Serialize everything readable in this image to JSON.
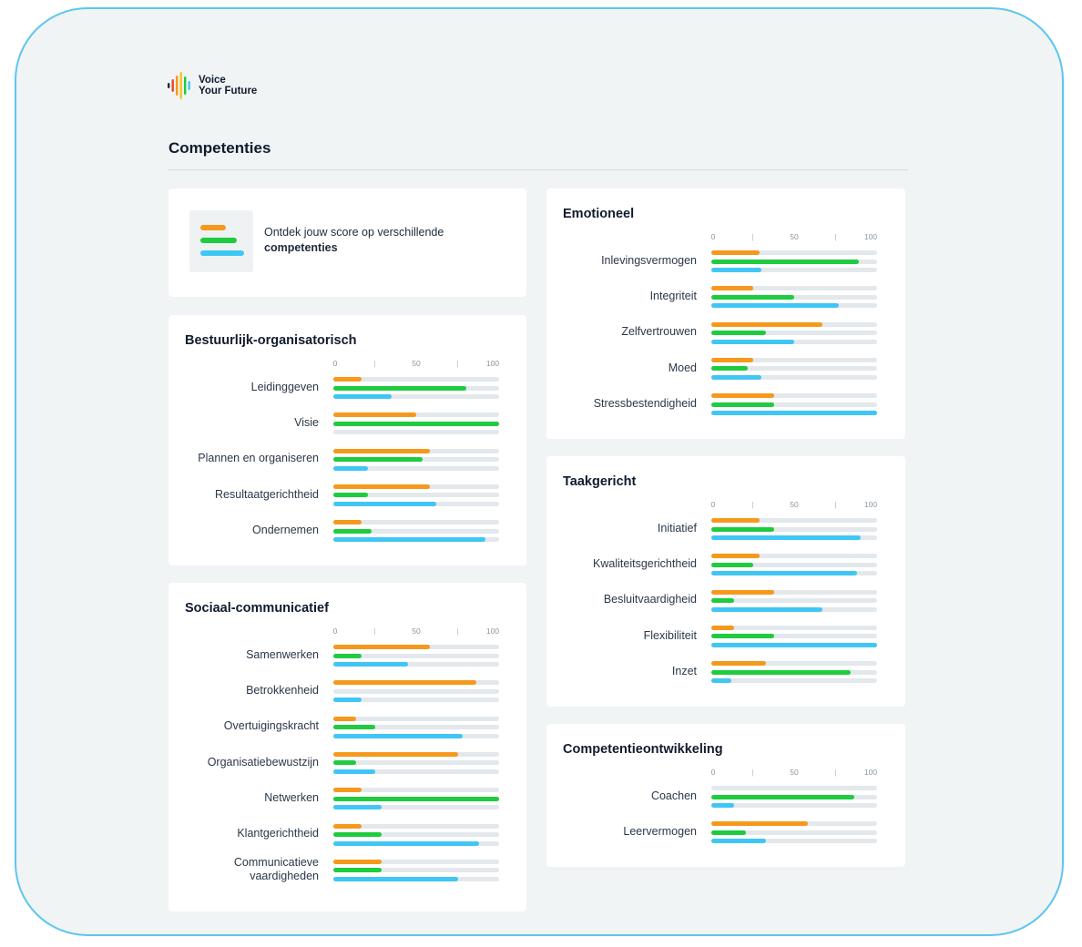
{
  "brand": {
    "line1": "Voice",
    "line2": "Your Future"
  },
  "page_title": "Competenties",
  "intro": {
    "text": "Ontdek jouw score op verschillende",
    "bold": "competenties"
  },
  "colors": {
    "orange": "#f5991c",
    "green": "#1fcb3f",
    "blue": "#40c6f5",
    "track": "#e3e8ec",
    "frame": "#5cc6ef",
    "background": "#f0f4f4"
  },
  "axis_ticks": [
    "0",
    "|",
    "50",
    "|",
    "100"
  ],
  "chart_data": [
    {
      "type": "bar",
      "title": "Bestuurlijk-organisatorisch",
      "categories": [
        "Leidinggeven",
        "Visie",
        "Plannen en organiseren",
        "Resultaatgerichtheid",
        "Ondernemen"
      ],
      "xlim": [
        0,
        100
      ],
      "series": [
        {
          "color": "orange",
          "values": [
            17,
            50,
            58,
            58,
            17
          ]
        },
        {
          "color": "green",
          "values": [
            80,
            100,
            54,
            21,
            23
          ]
        },
        {
          "color": "blue",
          "values": [
            35,
            0,
            21,
            62,
            92
          ]
        }
      ]
    },
    {
      "type": "bar",
      "title": "Sociaal-communicatief",
      "categories": [
        "Samenwerken",
        "Betrokkenheid",
        "Overtuigingskracht",
        "Organisatiebewustzijn",
        "Netwerken",
        "Klantgerichtheid",
        "Communicatieve\nvaardigheden"
      ],
      "xlim": [
        0,
        100
      ],
      "series": [
        {
          "color": "orange",
          "values": [
            58,
            86,
            14,
            75,
            17,
            17,
            29
          ]
        },
        {
          "color": "green",
          "values": [
            17,
            0,
            25,
            14,
            100,
            29,
            29
          ]
        },
        {
          "color": "blue",
          "values": [
            45,
            17,
            78,
            25,
            29,
            88,
            75
          ]
        }
      ]
    },
    {
      "type": "bar",
      "title": "Emotioneel",
      "categories": [
        "Inlevingsvermogen",
        "Integriteit",
        "Zelfvertrouwen",
        "Moed",
        "Stressbestendigheid"
      ],
      "xlim": [
        0,
        100
      ],
      "series": [
        {
          "color": "orange",
          "values": [
            29,
            25,
            67,
            25,
            38
          ]
        },
        {
          "color": "green",
          "values": [
            89,
            50,
            33,
            22,
            38
          ]
        },
        {
          "color": "blue",
          "values": [
            30,
            77,
            50,
            30,
            100
          ]
        }
      ]
    },
    {
      "type": "bar",
      "title": "Taakgericht",
      "categories": [
        "Initiatief",
        "Kwaliteitsgerichtheid",
        "Besluitvaardigheid",
        "Flexibiliteit",
        "Inzet"
      ],
      "xlim": [
        0,
        100
      ],
      "series": [
        {
          "color": "orange",
          "values": [
            29,
            29,
            38,
            14,
            33
          ]
        },
        {
          "color": "green",
          "values": [
            38,
            25,
            14,
            38,
            84
          ]
        },
        {
          "color": "blue",
          "values": [
            90,
            88,
            67,
            100,
            12
          ]
        }
      ]
    },
    {
      "type": "bar",
      "title": "Competentieontwikkeling",
      "categories": [
        "Coachen",
        "Leervermogen"
      ],
      "xlim": [
        0,
        100
      ],
      "series": [
        {
          "color": "orange",
          "values": [
            0,
            58
          ]
        },
        {
          "color": "green",
          "values": [
            86,
            21
          ]
        },
        {
          "color": "blue",
          "values": [
            14,
            33
          ]
        }
      ]
    }
  ]
}
